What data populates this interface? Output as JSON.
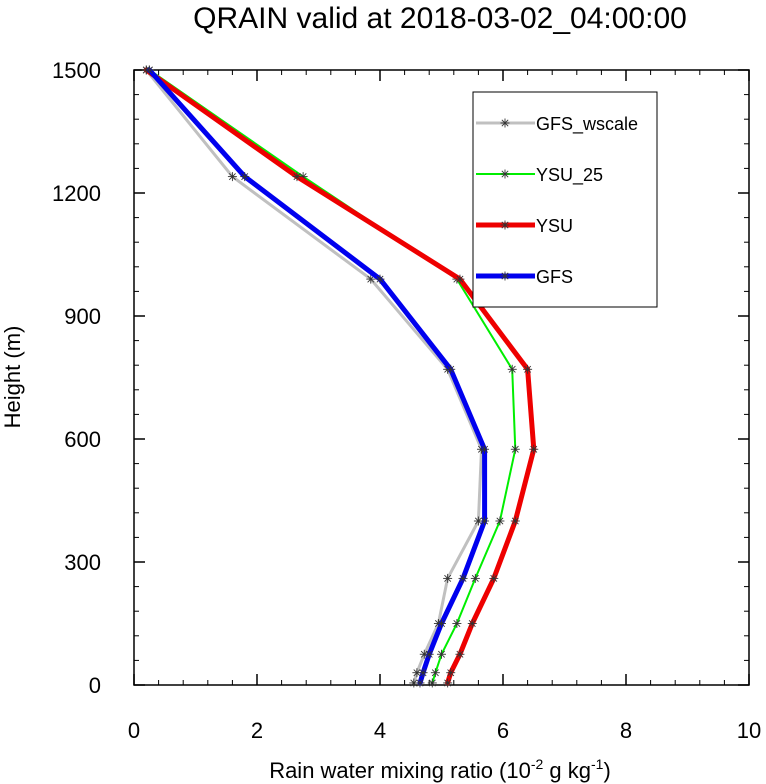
{
  "chart_data": {
    "type": "line",
    "title": "QRAIN valid at 2018-03-02_04:00:00",
    "xlabel": {
      "base": "Rain water mixing ratio (10",
      "sup1": "-2",
      "mid": " g kg",
      "sup2": "-1",
      "end": ")"
    },
    "ylabel": "Height (m)",
    "xlim": [
      0,
      10
    ],
    "ylim": [
      0,
      1500
    ],
    "xticks": [
      0,
      2,
      4,
      6,
      8,
      10
    ],
    "yticks": [
      0,
      300,
      600,
      900,
      1200,
      1500
    ],
    "grid": false,
    "legend_position": "top-right",
    "series": [
      {
        "name": "GFS_wscale",
        "color": "#c0c0c0",
        "width": 3,
        "points": [
          [
            4.55,
            5
          ],
          [
            4.6,
            30
          ],
          [
            4.72,
            75
          ],
          [
            4.95,
            150
          ],
          [
            5.1,
            260
          ],
          [
            5.6,
            400
          ],
          [
            5.65,
            575
          ],
          [
            5.1,
            770
          ],
          [
            3.85,
            990
          ],
          [
            1.6,
            1240
          ],
          [
            0.2,
            1500
          ]
        ]
      },
      {
        "name": "YSU_25",
        "color": "#00ee00",
        "width": 2,
        "points": [
          [
            4.85,
            5
          ],
          [
            4.9,
            30
          ],
          [
            5.0,
            75
          ],
          [
            5.25,
            150
          ],
          [
            5.55,
            260
          ],
          [
            5.95,
            400
          ],
          [
            6.2,
            575
          ],
          [
            6.15,
            770
          ],
          [
            5.25,
            990
          ],
          [
            2.75,
            1240
          ],
          [
            0.25,
            1500
          ]
        ]
      },
      {
        "name": "YSU",
        "color": "#ee0000",
        "width": 5,
        "points": [
          [
            5.1,
            5
          ],
          [
            5.15,
            30
          ],
          [
            5.3,
            75
          ],
          [
            5.5,
            150
          ],
          [
            5.85,
            260
          ],
          [
            6.2,
            400
          ],
          [
            6.5,
            575
          ],
          [
            6.4,
            770
          ],
          [
            5.3,
            990
          ],
          [
            2.65,
            1240
          ],
          [
            0.2,
            1500
          ]
        ]
      },
      {
        "name": "GFS",
        "color": "#0000ee",
        "width": 5,
        "points": [
          [
            4.65,
            5
          ],
          [
            4.7,
            30
          ],
          [
            4.8,
            75
          ],
          [
            5.0,
            150
          ],
          [
            5.35,
            260
          ],
          [
            5.7,
            400
          ],
          [
            5.7,
            575
          ],
          [
            5.15,
            770
          ],
          [
            4.0,
            990
          ],
          [
            1.8,
            1240
          ],
          [
            0.25,
            1500
          ]
        ]
      }
    ]
  }
}
